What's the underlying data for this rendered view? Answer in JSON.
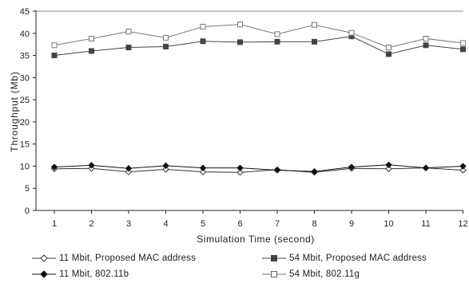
{
  "chart_data": {
    "type": "line",
    "title": "",
    "xlabel": "Simulation Time (second)",
    "ylabel": "Throughput (Mb)",
    "ylim": [
      0,
      45
    ],
    "yticks": [
      0,
      5,
      10,
      15,
      20,
      25,
      30,
      35,
      40,
      45
    ],
    "x": [
      1,
      2,
      3,
      4,
      5,
      6,
      7,
      8,
      9,
      10,
      11,
      12
    ],
    "grid": "horizontal line at top only",
    "legend_position": "bottom",
    "series": [
      {
        "name": "11 Mbit, Proposed MAC address",
        "marker": "open-diamond",
        "color": "#333333",
        "values": [
          9.4,
          9.5,
          8.7,
          9.3,
          8.7,
          8.6,
          9.2,
          8.6,
          9.5,
          9.4,
          9.6,
          9.1
        ]
      },
      {
        "name": "54 Mbit, Proposed MAC address",
        "marker": "filled-square",
        "color": "#444444",
        "values": [
          35.0,
          36.0,
          36.8,
          37.0,
          38.2,
          38.0,
          38.1,
          38.1,
          39.3,
          35.3,
          37.3,
          36.4
        ]
      },
      {
        "name": "11 Mbit, 802.11b",
        "marker": "filled-diamond",
        "color": "#111111",
        "values": [
          9.8,
          10.2,
          9.5,
          10.1,
          9.6,
          9.6,
          9.1,
          8.8,
          9.8,
          10.3,
          9.6,
          10.0
        ]
      },
      {
        "name": "54 Mbit, 802.11g",
        "marker": "open-square",
        "color": "#777777",
        "values": [
          37.3,
          38.8,
          40.4,
          39.0,
          41.5,
          42.0,
          39.8,
          41.9,
          40.1,
          36.8,
          38.8,
          37.8
        ]
      }
    ]
  }
}
